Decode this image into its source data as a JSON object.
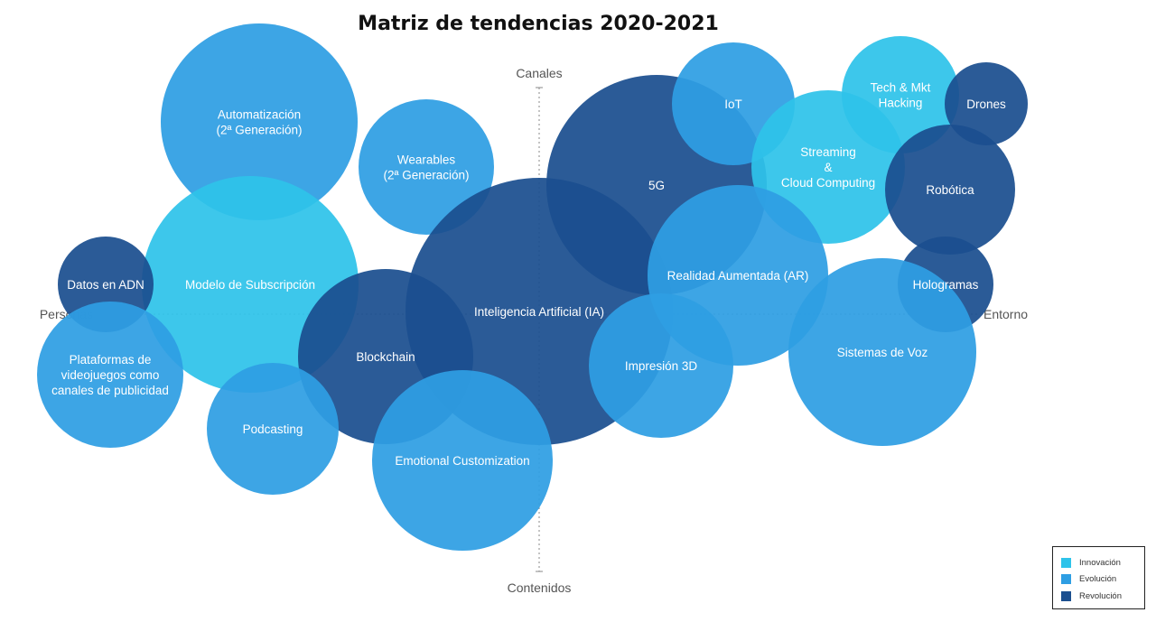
{
  "colors": {
    "innovacion": "#2ec3ea",
    "evolucion": "#2e9ee3",
    "revolucion": "#1b4f8f"
  },
  "chart_data": {
    "type": "bubble",
    "title": "Matriz de tendencias 2020-2021",
    "axes": {
      "top": "Canales",
      "bottom": "Contenidos",
      "left": "Personas",
      "right": "Entorno"
    },
    "legend": {
      "placement": "bottom-right",
      "entries": [
        {
          "key": "innovacion",
          "label": "Innovación"
        },
        {
          "key": "evolucion",
          "label": "Evolución"
        },
        {
          "key": "revolucion",
          "label": "Revolución"
        }
      ]
    },
    "bubbles": [
      {
        "label": "Automatización\n(2ª Generación)",
        "category": "evolucion",
        "x": -3.1,
        "y": 2.1,
        "size": 1.09
      },
      {
        "label": "Modelo de Subscripción",
        "category": "innovacion",
        "x": -3.2,
        "y": 0.3,
        "size": 1.2
      },
      {
        "label": "Wearables\n(2ª Generación)",
        "category": "evolucion",
        "x": -1.25,
        "y": 1.6,
        "size": 0.75
      },
      {
        "label": "Inteligencia Artificial (IA)",
        "category": "revolucion",
        "x": 0.0,
        "y": 0.0,
        "size": 1.48
      },
      {
        "label": "5G",
        "category": "revolucion",
        "x": 1.3,
        "y": 1.4,
        "size": 1.22
      },
      {
        "label": "IoT",
        "category": "evolucion",
        "x": 2.15,
        "y": 2.3,
        "size": 0.68
      },
      {
        "label": "Tech & Mkt\nHacking",
        "category": "innovacion",
        "x": 4.0,
        "y": 2.4,
        "size": 0.65
      },
      {
        "label": "Streaming\n&\nCloud Computing",
        "category": "innovacion",
        "x": 3.2,
        "y": 1.6,
        "size": 0.85
      },
      {
        "label": "Drones",
        "category": "revolucion",
        "x": 4.95,
        "y": 2.3,
        "size": 0.46
      },
      {
        "label": "Robótica",
        "category": "revolucion",
        "x": 4.55,
        "y": 1.35,
        "size": 0.72
      },
      {
        "label": "Realidad Aumentada (AR)",
        "category": "evolucion",
        "x": 2.2,
        "y": 0.4,
        "size": 1.0
      },
      {
        "label": "Hologramas",
        "category": "revolucion",
        "x": 4.5,
        "y": 0.3,
        "size": 0.53
      },
      {
        "label": "Sistemas de Voz",
        "category": "evolucion",
        "x": 3.8,
        "y": -0.45,
        "size": 1.04
      },
      {
        "label": "Impresión 3D",
        "category": "evolucion",
        "x": 1.35,
        "y": -0.6,
        "size": 0.8
      },
      {
        "label": "Datos en ADN",
        "category": "revolucion",
        "x": -4.8,
        "y": 0.3,
        "size": 0.53
      },
      {
        "label": "Plataformas de\nvideojuegos como\ncanales de publicidad",
        "category": "evolucion",
        "x": -4.75,
        "y": -0.7,
        "size": 0.81
      },
      {
        "label": "Blockchain",
        "category": "revolucion",
        "x": -1.7,
        "y": -0.5,
        "size": 0.97
      },
      {
        "label": "Podcasting",
        "category": "evolucion",
        "x": -2.95,
        "y": -1.3,
        "size": 0.73
      },
      {
        "label": "Emotional Customization",
        "category": "evolucion",
        "x": -0.85,
        "y": -1.65,
        "size": 1.0
      }
    ]
  }
}
